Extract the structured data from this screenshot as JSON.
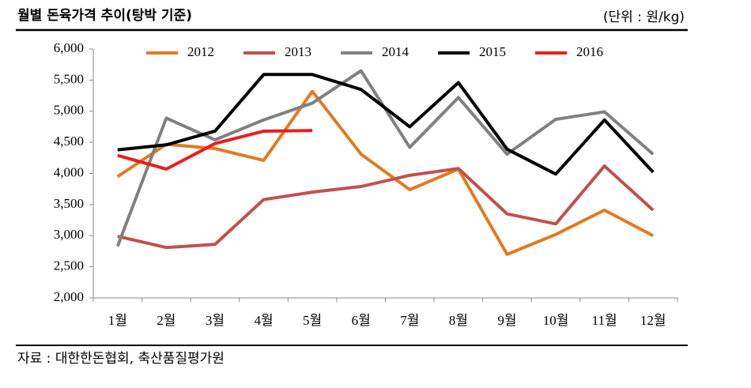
{
  "chart_data": {
    "type": "line",
    "title": "월별 돈육가격 추이(탕박 기준)",
    "unit": "(단위 : 원/kg)",
    "source": "자료 : 대한한돈협회, 축산품질평가원",
    "categories": [
      "1월",
      "2월",
      "3월",
      "4월",
      "5월",
      "6월",
      "7월",
      "8월",
      "9월",
      "10월",
      "11월",
      "12월"
    ],
    "series": [
      {
        "name": "2012",
        "color": "#e07b20",
        "values": [
          3950,
          4470,
          4400,
          4210,
          5320,
          4310,
          3740,
          4070,
          2700,
          3020,
          3410,
          3000
        ]
      },
      {
        "name": "2013",
        "color": "#c0504d",
        "values": [
          2990,
          2810,
          2860,
          3580,
          3700,
          3790,
          3970,
          4080,
          3350,
          3190,
          4120,
          3410
        ]
      },
      {
        "name": "2014",
        "color": "#808080",
        "values": [
          2830,
          4890,
          4540,
          4860,
          5130,
          5650,
          4420,
          5220,
          4310,
          4870,
          4990,
          4310
        ]
      },
      {
        "name": "2015",
        "color": "#000000",
        "values": [
          4380,
          4460,
          4680,
          5590,
          5590,
          5350,
          4750,
          5460,
          4390,
          3990,
          4860,
          4020
        ]
      },
      {
        "name": "2016",
        "color": "#ee1c1c",
        "values": [
          4290,
          4070,
          4480,
          4680,
          4690,
          null,
          null,
          null,
          null,
          null,
          null,
          null
        ]
      }
    ],
    "ylim": [
      2000,
      6000
    ],
    "yticks": [
      {
        "value": 2000,
        "label": "2,000"
      },
      {
        "value": 2500,
        "label": "2,500"
      },
      {
        "value": 3000,
        "label": "3,000"
      },
      {
        "value": 3500,
        "label": "3,500"
      },
      {
        "value": 4000,
        "label": "4,000"
      },
      {
        "value": 4500,
        "label": "4,500"
      },
      {
        "value": 5000,
        "label": "5,000"
      },
      {
        "value": 5500,
        "label": "5,500"
      },
      {
        "value": 6000,
        "label": "6,000"
      }
    ],
    "grid": false,
    "legend": "top"
  }
}
